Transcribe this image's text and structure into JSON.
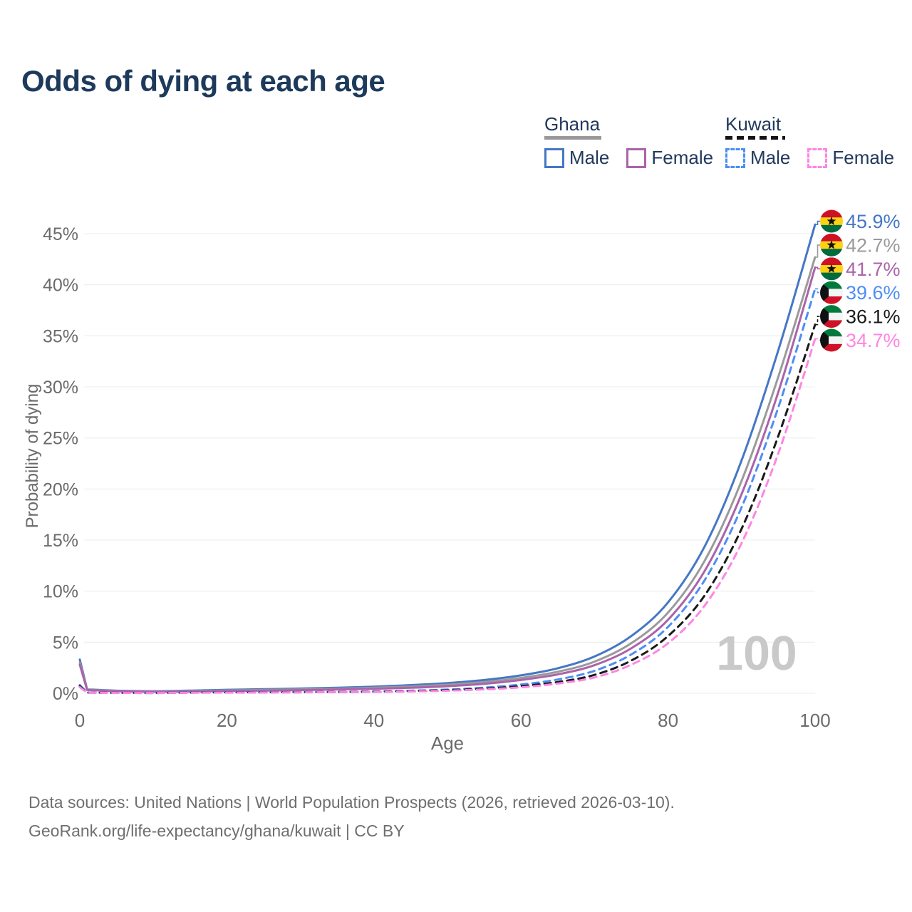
{
  "title": "Odds of dying at each age",
  "watermark": "100",
  "legend": {
    "groups": [
      {
        "label": "Ghana",
        "underline_style": "solid",
        "underline_color": "#999999",
        "items": [
          {
            "label": "Male",
            "color": "#4577c4",
            "dash": false
          },
          {
            "label": "Female",
            "color": "#ab63a9",
            "dash": false
          }
        ]
      },
      {
        "label": "Kuwait",
        "underline_style": "dashed",
        "underline_color": "#141414",
        "items": [
          {
            "label": "Male",
            "color": "#4d8ef5",
            "dash": true
          },
          {
            "label": "Female",
            "color": "#ff85e3",
            "dash": true
          }
        ]
      }
    ]
  },
  "footer": {
    "line1": "Data sources: United Nations | World Population Prospects (2026, retrieved 2026-03-10).",
    "line2": "GeoRank.org/life-expectancy/ghana/kuwait | CC BY"
  },
  "chart_data": {
    "type": "line",
    "title": "Odds of dying at each age",
    "xlabel": "Age",
    "ylabel": "Probability of dying",
    "xlim": [
      0,
      100
    ],
    "ylim": [
      0,
      46
    ],
    "grid": "horizontal",
    "legend_position": "top-right",
    "x_ticks": [
      0,
      20,
      40,
      60,
      80,
      100
    ],
    "x_tick_labels": [
      "0",
      "20",
      "40",
      "60",
      "80",
      "100"
    ],
    "y_ticks": [
      0,
      5,
      10,
      15,
      20,
      25,
      30,
      35,
      40,
      45
    ],
    "y_tick_labels": [
      "0%",
      "5%",
      "10%",
      "15%",
      "20%",
      "25%",
      "30%",
      "35%",
      "40%",
      "45%"
    ],
    "x": [
      0,
      1,
      5,
      10,
      15,
      20,
      25,
      30,
      35,
      40,
      45,
      50,
      55,
      60,
      65,
      70,
      75,
      80,
      85,
      90,
      95,
      100
    ],
    "series": [
      {
        "id": "ghana-male",
        "name": "Ghana male",
        "country": "Ghana",
        "flag": "ghana",
        "color": "#4577c4",
        "dash": false,
        "end_label": "45.9%",
        "end_value": 45.9,
        "values": [
          3.3,
          0.38,
          0.25,
          0.2,
          0.26,
          0.34,
          0.4,
          0.46,
          0.54,
          0.65,
          0.8,
          1.0,
          1.3,
          1.75,
          2.45,
          3.6,
          5.6,
          8.9,
          14.4,
          22.8,
          33.6,
          45.9
        ]
      },
      {
        "id": "ghana-both",
        "name": "Ghana both sexes",
        "country": "Ghana",
        "flag": "ghana",
        "color": "#9a9a9a",
        "dash": false,
        "end_label": "42.7%",
        "end_value": 42.7,
        "values": [
          3.0,
          0.35,
          0.22,
          0.17,
          0.21,
          0.28,
          0.33,
          0.38,
          0.45,
          0.54,
          0.66,
          0.84,
          1.1,
          1.5,
          2.1,
          3.1,
          4.9,
          7.9,
          13.0,
          20.8,
          31.0,
          42.7
        ]
      },
      {
        "id": "ghana-female",
        "name": "Ghana female",
        "country": "Ghana",
        "flag": "ghana",
        "color": "#ab63a9",
        "dash": false,
        "end_label": "41.7%",
        "end_value": 41.7,
        "values": [
          2.8,
          0.32,
          0.2,
          0.15,
          0.17,
          0.22,
          0.26,
          0.31,
          0.37,
          0.44,
          0.54,
          0.69,
          0.92,
          1.3,
          1.85,
          2.75,
          4.4,
          7.2,
          12.0,
          19.5,
          29.5,
          41.7
        ]
      },
      {
        "id": "kuwait-male",
        "name": "Kuwait male",
        "country": "Kuwait",
        "flag": "kuwait",
        "color": "#4d8ef5",
        "dash": true,
        "end_label": "39.6%",
        "end_value": 39.6,
        "values": [
          0.8,
          0.07,
          0.04,
          0.04,
          0.07,
          0.1,
          0.11,
          0.12,
          0.14,
          0.18,
          0.25,
          0.36,
          0.55,
          0.85,
          1.35,
          2.2,
          3.8,
          6.5,
          11.1,
          18.2,
          28.0,
          39.6
        ]
      },
      {
        "id": "kuwait-both",
        "name": "Kuwait both sexes",
        "country": "Kuwait",
        "flag": "kuwait",
        "color": "#1a1a1a",
        "dash": true,
        "end_label": "36.1%",
        "end_value": 36.1,
        "values": [
          0.7,
          0.06,
          0.04,
          0.03,
          0.06,
          0.08,
          0.09,
          0.1,
          0.12,
          0.15,
          0.21,
          0.3,
          0.45,
          0.7,
          1.1,
          1.8,
          3.2,
          5.6,
          9.6,
          16.1,
          25.2,
          36.1
        ]
      },
      {
        "id": "kuwait-female",
        "name": "Kuwait female",
        "country": "Kuwait",
        "flag": "kuwait",
        "color": "#ff85e3",
        "dash": true,
        "end_label": "34.7%",
        "end_value": 34.7,
        "values": [
          0.6,
          0.06,
          0.03,
          0.03,
          0.05,
          0.06,
          0.07,
          0.09,
          0.11,
          0.13,
          0.18,
          0.25,
          0.38,
          0.58,
          0.95,
          1.55,
          2.8,
          4.9,
          8.6,
          14.7,
          23.5,
          34.7
        ]
      }
    ]
  }
}
